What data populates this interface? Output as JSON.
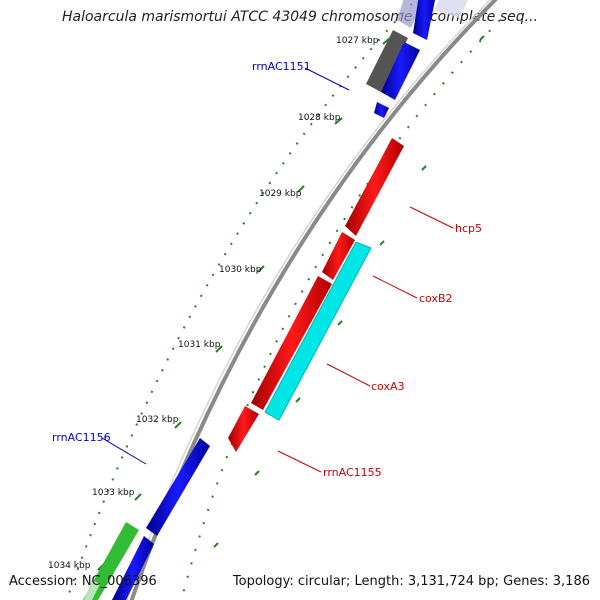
{
  "title": "Haloarcula marismortui ATCC 43049 chromosome I, complete seq...",
  "accession": "Accession: NC_006396",
  "summary": "Topology: circular; Length: 3,131,724 bp; Genes: 3,186",
  "colors": {
    "backbone": "#8a8a8a",
    "tick": "#2e7d2e",
    "rrna": "#0000ee",
    "cds": "#ee0000",
    "cyan_feature": "#00e5e5",
    "grey_feature": "#555555",
    "green_feature": "#33bb33",
    "rrna_label": "#0000cc",
    "cds_label": "#cc0000"
  },
  "ticks": [
    {
      "label": "1027 kbp"
    },
    {
      "label": "1028 kbp"
    },
    {
      "label": "1029 kbp"
    },
    {
      "label": "1030 kbp"
    },
    {
      "label": "1031 kbp"
    },
    {
      "label": "1032 kbp"
    },
    {
      "label": "1033 kbp"
    },
    {
      "label": "1034 kbp"
    }
  ],
  "features": [
    {
      "label": "rrnAC1151",
      "color": "rrna_label"
    },
    {
      "label": "hcp5",
      "color": "cds_label"
    },
    {
      "label": "coxB2",
      "color": "cds_label"
    },
    {
      "label": "coxA3",
      "color": "cds_label"
    },
    {
      "label": "rrnAC1156",
      "color": "rrna_label"
    },
    {
      "label": "rrnAC1155",
      "color": "cds_label"
    }
  ]
}
